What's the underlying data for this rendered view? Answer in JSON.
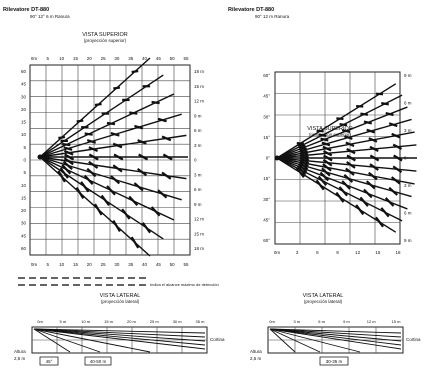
{
  "left_panel": {
    "model": "Rilevatore DT-880",
    "subtitle": "90° 12° 6 m Ranura",
    "view_title": "VISTA SUPERIOR",
    "view_subtitle": "(proyección superior)",
    "top_ticks": [
      "0m",
      "5",
      "10",
      "15",
      "20",
      "25",
      "30",
      "35",
      "40",
      "45",
      "50",
      "55"
    ],
    "left_ticks": [
      "60",
      "45",
      "30",
      "20",
      "15",
      "10",
      "5",
      "0",
      "5",
      "10",
      "15",
      "20",
      "30",
      "45",
      "60"
    ],
    "right_ticks": [
      "18 m",
      "15 m",
      "12 m",
      "9 m",
      "6 m",
      "3 m",
      "0",
      "3 m",
      "6 m",
      "9 m",
      "12 m",
      "15 m",
      "18 m"
    ],
    "bottom_ticks": [
      "0m",
      "5",
      "10",
      "15",
      "20",
      "25",
      "30",
      "35",
      "40",
      "45",
      "50",
      "55"
    ],
    "footer_caption": "Indica el alcance máximo de detección",
    "fan": {
      "half_angle_deg": 42,
      "zone_count": 11,
      "max_range_m": 18
    }
  },
  "right_panel": {
    "model": "Rilevatore DT-880",
    "subtitle": "90° 12 m Ranura",
    "view_title": "VISTA SUPERIOR",
    "view_subtitle": "(proyección superior)",
    "left_ticks": [
      "60°",
      "45°",
      "30°",
      "15°",
      "0°",
      "15°",
      "30°",
      "45°",
      "60°"
    ],
    "right_ticks": [
      "9 m",
      "6 m",
      "3 m",
      "0",
      "3 m",
      "6 m",
      "9 m"
    ],
    "bottom_ticks": [
      "0m",
      "3",
      "6",
      "9",
      "12",
      "15",
      "18"
    ],
    "fan": {
      "half_angle_deg": 32,
      "zone_count": 13,
      "max_range_m": 12
    }
  },
  "bottom_left": {
    "title": "VISTA LATERAL",
    "subtitle": "(proyección lateral)",
    "top_ticks": [
      "0m",
      "5 m",
      "10 m",
      "15 m",
      "20 m",
      "25 m",
      "30 m",
      "35 m"
    ],
    "left_labels": [
      "Altura",
      "2,5 m"
    ],
    "box_labels": [
      "45°",
      "40-50 m"
    ],
    "right_labels": [
      "Cortina"
    ]
  },
  "bottom_right": {
    "title": "VISTA LATERAL",
    "subtitle": "(proyección lateral)",
    "top_ticks": [
      "0m",
      "3 m",
      "6 m",
      "9 m",
      "12 m",
      "15 m"
    ],
    "left_labels": [
      "Altura",
      "2,5 m"
    ],
    "box_labels": [
      "30-35 m"
    ],
    "right_labels": [
      "Cortina"
    ]
  }
}
